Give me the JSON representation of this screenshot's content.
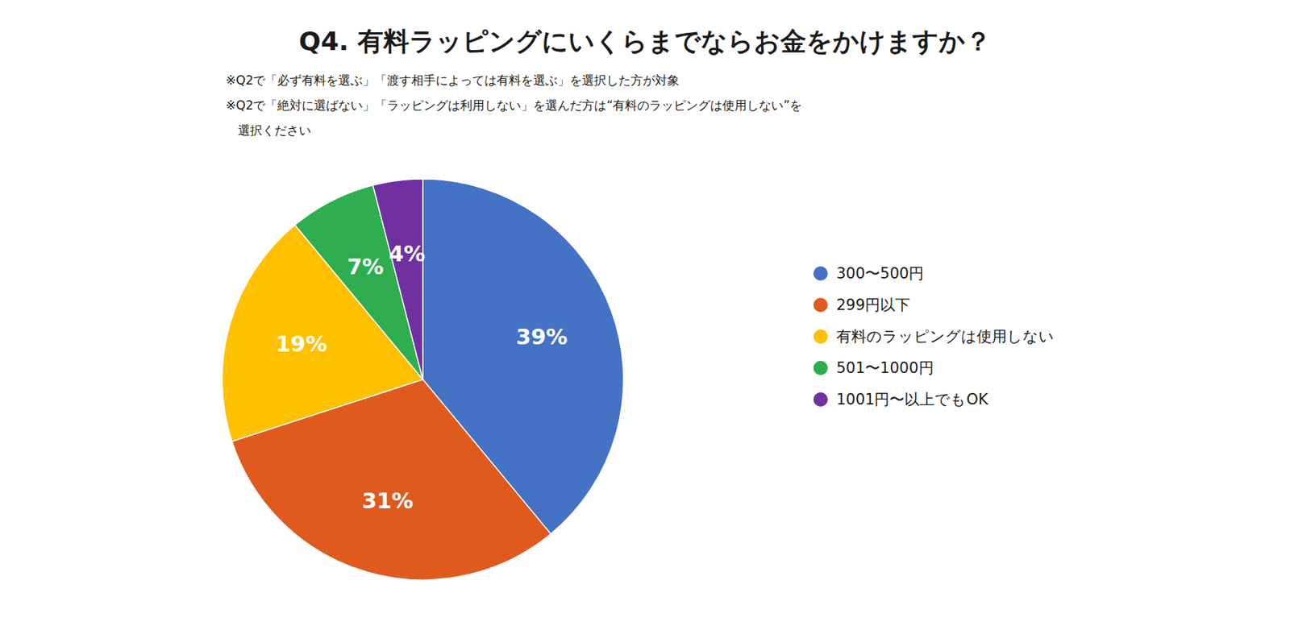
{
  "chart_data": {
    "type": "pie",
    "title": "Q4. 有料ラッピングにいくらまでならお金をかけますか？",
    "subtitle": [
      "※Q2で「必ず有料を選ぶ」「渡す相手によっては有料を選ぶ」を選択した方が対象",
      "※Q2で「絶対に選ばない」「ラッピングは利用しない」を選んだ方は“有料のラッピングは使用しない”を",
      "　選択ください"
    ],
    "categories": [
      "300〜500円",
      "299円以下",
      "有料のラッピングは使用しない",
      "501〜1000円",
      "1001円〜以上でもOK"
    ],
    "values": [
      39,
      31,
      19,
      7,
      4
    ],
    "value_labels": [
      "39%",
      "31%",
      "19%",
      "7%",
      "4%"
    ],
    "colors": [
      "#4472C4",
      "#E05A1E",
      "#FFC000",
      "#2EAE4E",
      "#7030A0"
    ],
    "data_labels": true,
    "legend": "right"
  }
}
